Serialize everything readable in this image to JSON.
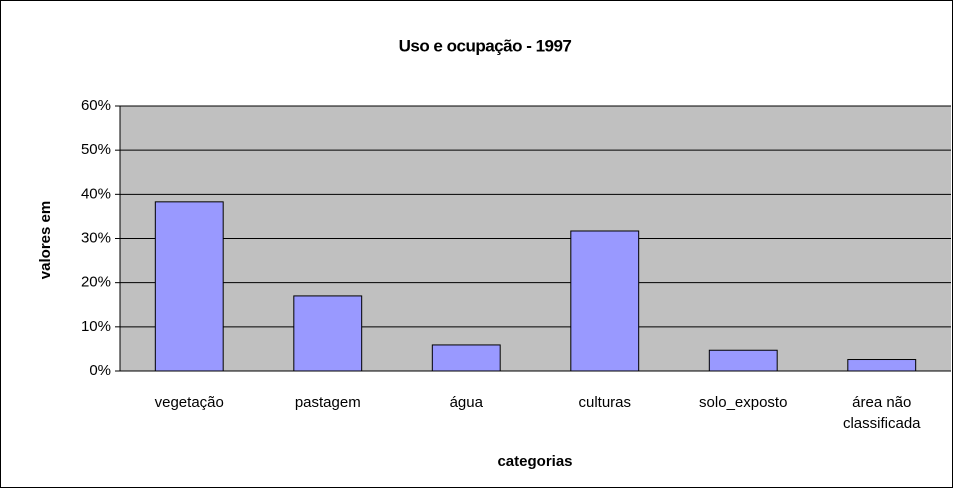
{
  "chart_data": {
    "type": "bar",
    "title": "Uso e ocupação - 1997",
    "x_label": "categorias",
    "y_label": "valores em",
    "categories": [
      "vegetação",
      "pastagem",
      "água",
      "culturas",
      "solo_exposto",
      "área não classificada"
    ],
    "values": [
      38.3,
      17.0,
      5.9,
      31.7,
      4.7,
      2.6
    ],
    "color": "#9999ff",
    "ylim": [
      0,
      60
    ],
    "yticks": [
      {
        "value": 0,
        "label": "0%"
      },
      {
        "value": 10,
        "label": "10%"
      },
      {
        "value": 20,
        "label": "20%"
      },
      {
        "value": 30,
        "label": "30%"
      },
      {
        "value": 40,
        "label": "40%"
      },
      {
        "value": 50,
        "label": "50%"
      },
      {
        "value": 60,
        "label": "60%"
      }
    ],
    "grid": true
  }
}
